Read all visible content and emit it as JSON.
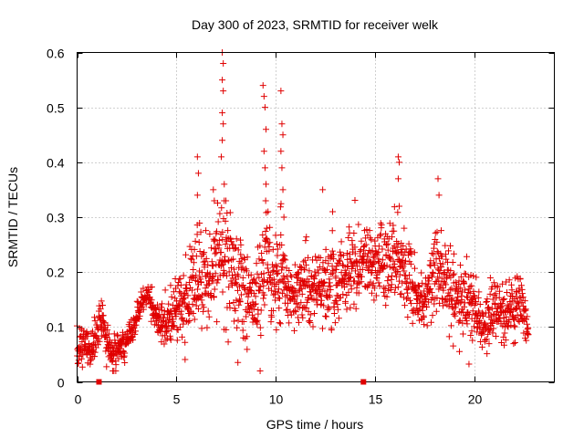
{
  "chart_data": {
    "type": "scatter",
    "title": "Day 300 of 2023, SRMTID for receiver welk",
    "xlabel": "GPS time / hours",
    "ylabel": "SRMTID / TECUs",
    "xlim": [
      0,
      24
    ],
    "ylim": [
      0,
      0.6
    ],
    "x_ticks": [
      "0",
      "5",
      "10",
      "15",
      "20"
    ],
    "x_tick_values": [
      0,
      5,
      10,
      15,
      20
    ],
    "y_ticks": [
      "0",
      "0.1",
      "0.2",
      "0.3",
      "0.4",
      "0.5",
      "0.6"
    ],
    "y_tick_values": [
      0,
      0.1,
      0.2,
      0.3,
      0.4,
      0.5,
      0.6
    ],
    "grid": true,
    "marker": "plus",
    "color": "#e00000",
    "series": [
      {
        "name": "SRMTID",
        "profile": [
          [
            0.0,
            0.05,
            0.02
          ],
          [
            0.3,
            0.07,
            0.02
          ],
          [
            0.6,
            0.06,
            0.02
          ],
          [
            0.9,
            0.07,
            0.02
          ],
          [
            1.2,
            0.12,
            0.03
          ],
          [
            1.5,
            0.07,
            0.02
          ],
          [
            1.8,
            0.05,
            0.02
          ],
          [
            2.1,
            0.06,
            0.02
          ],
          [
            2.4,
            0.07,
            0.02
          ],
          [
            2.7,
            0.09,
            0.02
          ],
          [
            3.0,
            0.12,
            0.02
          ],
          [
            3.3,
            0.15,
            0.01
          ],
          [
            3.6,
            0.16,
            0.01
          ],
          [
            3.9,
            0.12,
            0.02
          ],
          [
            4.2,
            0.1,
            0.02
          ],
          [
            4.5,
            0.11,
            0.03
          ],
          [
            4.8,
            0.13,
            0.04
          ],
          [
            5.1,
            0.14,
            0.04
          ],
          [
            5.4,
            0.13,
            0.04
          ],
          [
            5.7,
            0.16,
            0.05
          ],
          [
            6.0,
            0.2,
            0.06
          ],
          [
            6.3,
            0.18,
            0.05
          ],
          [
            6.6,
            0.19,
            0.06
          ],
          [
            6.9,
            0.22,
            0.07
          ],
          [
            7.2,
            0.23,
            0.07
          ],
          [
            7.5,
            0.24,
            0.08
          ],
          [
            7.8,
            0.18,
            0.06
          ],
          [
            8.1,
            0.17,
            0.06
          ],
          [
            8.4,
            0.18,
            0.06
          ],
          [
            8.7,
            0.16,
            0.05
          ],
          [
            9.0,
            0.15,
            0.05
          ],
          [
            9.3,
            0.22,
            0.08
          ],
          [
            9.6,
            0.22,
            0.07
          ],
          [
            9.9,
            0.16,
            0.05
          ],
          [
            10.2,
            0.21,
            0.07
          ],
          [
            10.5,
            0.17,
            0.04
          ],
          [
            10.8,
            0.16,
            0.04
          ],
          [
            11.1,
            0.16,
            0.04
          ],
          [
            11.4,
            0.17,
            0.04
          ],
          [
            11.7,
            0.17,
            0.04
          ],
          [
            12.0,
            0.16,
            0.04
          ],
          [
            12.3,
            0.18,
            0.05
          ],
          [
            12.6,
            0.19,
            0.05
          ],
          [
            12.9,
            0.18,
            0.05
          ],
          [
            13.2,
            0.18,
            0.05
          ],
          [
            13.5,
            0.19,
            0.05
          ],
          [
            13.8,
            0.2,
            0.05
          ],
          [
            14.1,
            0.2,
            0.05
          ],
          [
            14.4,
            0.22,
            0.05
          ],
          [
            14.7,
            0.21,
            0.05
          ],
          [
            15.0,
            0.21,
            0.05
          ],
          [
            15.3,
            0.23,
            0.05
          ],
          [
            15.6,
            0.22,
            0.05
          ],
          [
            15.9,
            0.23,
            0.05
          ],
          [
            16.2,
            0.22,
            0.05
          ],
          [
            16.5,
            0.2,
            0.05
          ],
          [
            16.8,
            0.18,
            0.05
          ],
          [
            17.1,
            0.15,
            0.04
          ],
          [
            17.4,
            0.14,
            0.04
          ],
          [
            17.7,
            0.17,
            0.05
          ],
          [
            18.0,
            0.21,
            0.05
          ],
          [
            18.3,
            0.2,
            0.05
          ],
          [
            18.6,
            0.18,
            0.05
          ],
          [
            18.9,
            0.16,
            0.05
          ],
          [
            19.2,
            0.16,
            0.05
          ],
          [
            19.5,
            0.14,
            0.05
          ],
          [
            19.8,
            0.14,
            0.04
          ],
          [
            20.1,
            0.11,
            0.03
          ],
          [
            20.4,
            0.1,
            0.03
          ],
          [
            20.7,
            0.12,
            0.04
          ],
          [
            21.0,
            0.14,
            0.04
          ],
          [
            21.3,
            0.13,
            0.04
          ],
          [
            21.6,
            0.12,
            0.03
          ],
          [
            21.9,
            0.14,
            0.04
          ],
          [
            22.2,
            0.15,
            0.04
          ],
          [
            22.5,
            0.11,
            0.03
          ],
          [
            22.7,
            0.1,
            0.02
          ]
        ],
        "spikes": [
          [
            6.05,
            0.41
          ],
          [
            6.1,
            0.38
          ],
          [
            6.05,
            0.34
          ],
          [
            6.85,
            0.35
          ],
          [
            6.9,
            0.33
          ],
          [
            7.3,
            0.6
          ],
          [
            7.35,
            0.58
          ],
          [
            7.3,
            0.55
          ],
          [
            7.35,
            0.53
          ],
          [
            7.3,
            0.49
          ],
          [
            7.35,
            0.47
          ],
          [
            7.3,
            0.44
          ],
          [
            7.25,
            0.41
          ],
          [
            7.4,
            0.36
          ],
          [
            7.4,
            0.33
          ],
          [
            9.35,
            0.54
          ],
          [
            9.4,
            0.52
          ],
          [
            9.45,
            0.5
          ],
          [
            9.5,
            0.46
          ],
          [
            9.4,
            0.42
          ],
          [
            9.45,
            0.39
          ],
          [
            9.5,
            0.36
          ],
          [
            9.6,
            0.31
          ],
          [
            10.25,
            0.53
          ],
          [
            10.3,
            0.47
          ],
          [
            10.35,
            0.45
          ],
          [
            10.25,
            0.42
          ],
          [
            10.3,
            0.39
          ],
          [
            10.35,
            0.35
          ],
          [
            10.4,
            0.3
          ],
          [
            16.15,
            0.41
          ],
          [
            16.2,
            0.4
          ],
          [
            16.15,
            0.37
          ],
          [
            16.2,
            0.32
          ],
          [
            18.15,
            0.37
          ],
          [
            18.2,
            0.34
          ],
          [
            12.35,
            0.35
          ],
          [
            12.85,
            0.31
          ]
        ],
        "count": 1900,
        "seed": 300
      }
    ],
    "axis_markers": [
      1.1,
      14.4
    ]
  }
}
